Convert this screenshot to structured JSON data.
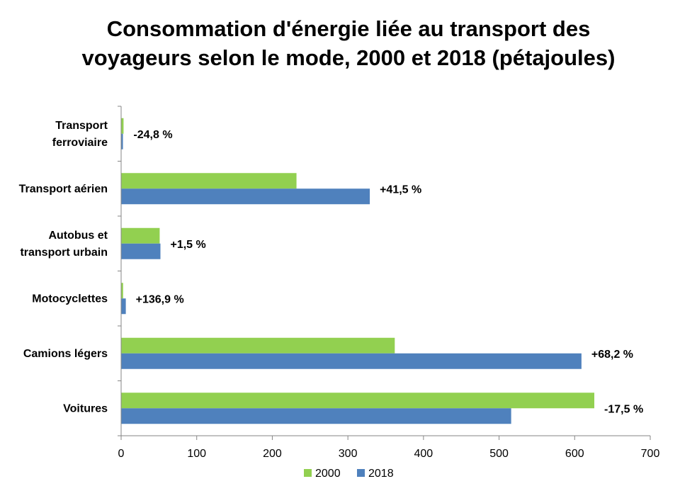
{
  "title": {
    "line1": "Consommation d'énergie liée au transport des",
    "line2": "voyageurs selon le mode, 2000 et 2018 (pétajoules)"
  },
  "chart_data": {
    "type": "bar",
    "orientation": "horizontal",
    "title": "Consommation d'énergie liée au transport des voyageurs selon le mode, 2000 et 2018 (pétajoules)",
    "categories": [
      [
        "Transport",
        "ferroviaire"
      ],
      [
        "Transport aérien"
      ],
      [
        "Autobus et",
        "transport urbain"
      ],
      [
        "Motocyclettes"
      ],
      [
        "Camions légers"
      ],
      [
        "Voitures"
      ]
    ],
    "series": [
      {
        "name": "2000",
        "color": "#92d050",
        "values": [
          3.2,
          232,
          51,
          2.6,
          362,
          626
        ]
      },
      {
        "name": "2018",
        "color": "#4f81bd",
        "values": [
          2.4,
          329,
          52,
          6.2,
          609,
          516
        ]
      }
    ],
    "annotations": [
      "-24,8 %",
      "+41,5 %",
      "+1,5 %",
      "+136,9 %",
      "+68,2 %",
      "-17,5 %"
    ],
    "xlim": [
      0,
      700
    ],
    "xticks": [
      0,
      100,
      200,
      300,
      400,
      500,
      600,
      700
    ],
    "xlabel": "",
    "ylabel": "",
    "grid": false,
    "legend": "bottom"
  }
}
